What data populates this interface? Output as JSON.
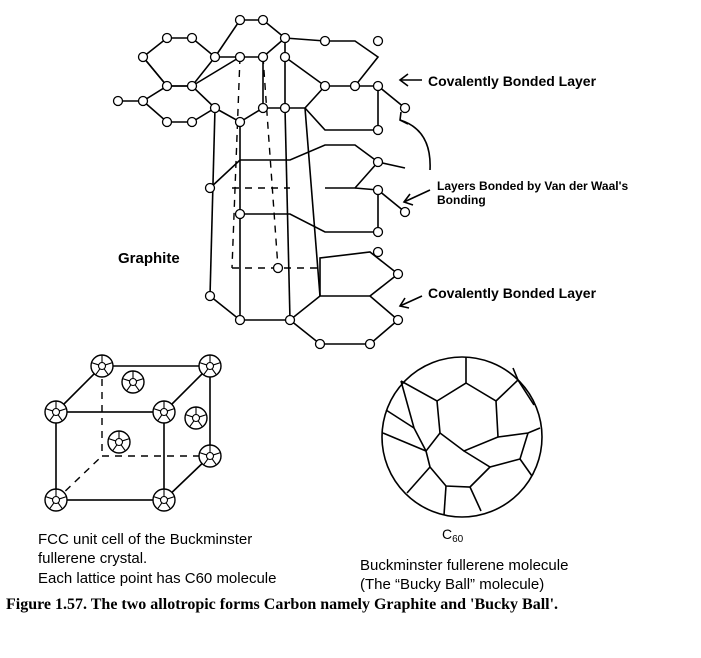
{
  "graphite": {
    "label": "Graphite",
    "annotations": {
      "top_layer": "Covalently Bonded Layer",
      "vdw_line1": "Layers Bonded by Van der Waal's",
      "vdw_line2": "Bonding",
      "bottom_layer": "Covalently Bonded Layer"
    }
  },
  "fcc": {
    "caption_line1": "FCC unit cell of the Buckminster",
    "caption_line2": "fullerene crystal.",
    "caption_line3": "Each lattice point has C60 molecule"
  },
  "buckyball": {
    "symbol": "C",
    "subscript": "60",
    "caption_line1": "Buckminster fullerene molecule",
    "caption_line2": "(The “Bucky Ball” molecule)"
  },
  "figure_caption": "Figure 1.57. The two allotropic forms Carbon namely Graphite and 'Bucky Ball'."
}
